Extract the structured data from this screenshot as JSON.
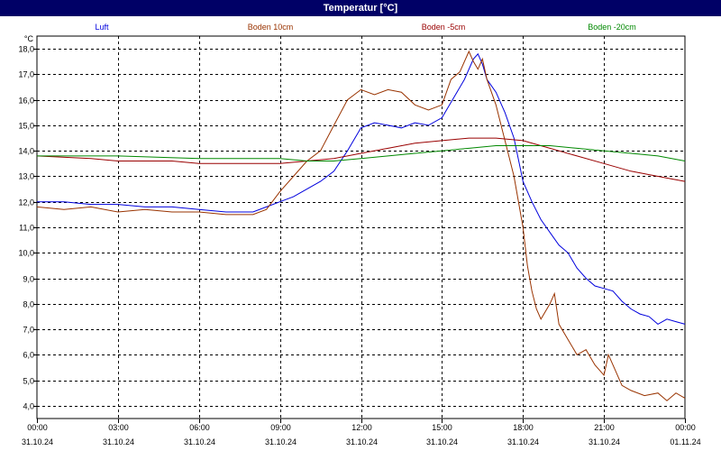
{
  "window": {
    "title": "Temperatur [°C]"
  },
  "chart_data": {
    "type": "line",
    "title": "Temperatur [°C]",
    "ylabel": "°C",
    "ylim": [
      3.5,
      18.5
    ],
    "yticks": [
      4.0,
      5.0,
      6.0,
      7.0,
      8.0,
      9.0,
      10.0,
      11.0,
      12.0,
      13.0,
      14.0,
      15.0,
      16.0,
      17.0,
      18.0
    ],
    "ytick_labels": [
      "4,0",
      "5,0",
      "6,0",
      "7,0",
      "8,0",
      "9,0",
      "10,0",
      "11,0",
      "12,0",
      "13,0",
      "14,0",
      "15,0",
      "16,0",
      "17,0",
      "18,0"
    ],
    "xlim": [
      "31.10.24 00:00",
      "01.11.24 00:00"
    ],
    "xticks": [
      {
        "time": "00:00",
        "date": "31.10.24"
      },
      {
        "time": "03:00",
        "date": "31.10.24"
      },
      {
        "time": "06:00",
        "date": "31.10.24"
      },
      {
        "time": "09:00",
        "date": "31.10.24"
      },
      {
        "time": "12:00",
        "date": "31.10.24"
      },
      {
        "time": "15:00",
        "date": "31.10.24"
      },
      {
        "time": "18:00",
        "date": "31.10.24"
      },
      {
        "time": "21:00",
        "date": "31.10.24"
      },
      {
        "time": "00:00",
        "date": "01.11.24"
      }
    ],
    "grid": true,
    "legend_position": "top",
    "series": [
      {
        "name": "Luft",
        "color": "#0000dd",
        "points": [
          [
            "00:00",
            12.0
          ],
          [
            "01:00",
            12.0
          ],
          [
            "02:00",
            11.9
          ],
          [
            "03:00",
            11.9
          ],
          [
            "04:00",
            11.8
          ],
          [
            "05:00",
            11.8
          ],
          [
            "06:00",
            11.7
          ],
          [
            "07:00",
            11.6
          ],
          [
            "08:00",
            11.6
          ],
          [
            "08:30",
            11.8
          ],
          [
            "09:00",
            12.0
          ],
          [
            "09:30",
            12.2
          ],
          [
            "10:00",
            12.5
          ],
          [
            "10:30",
            12.8
          ],
          [
            "11:00",
            13.2
          ],
          [
            "11:30",
            14.0
          ],
          [
            "12:00",
            14.9
          ],
          [
            "12:30",
            15.1
          ],
          [
            "13:00",
            15.0
          ],
          [
            "13:30",
            14.9
          ],
          [
            "14:00",
            15.1
          ],
          [
            "14:30",
            15.0
          ],
          [
            "15:00",
            15.3
          ],
          [
            "15:30",
            16.2
          ],
          [
            "15:50",
            16.8
          ],
          [
            "16:10",
            17.6
          ],
          [
            "16:20",
            17.8
          ],
          [
            "16:30",
            17.4
          ],
          [
            "16:40",
            16.8
          ],
          [
            "17:00",
            16.3
          ],
          [
            "17:20",
            15.5
          ],
          [
            "17:40",
            14.5
          ],
          [
            "18:00",
            12.8
          ],
          [
            "18:20",
            12.0
          ],
          [
            "18:40",
            11.3
          ],
          [
            "19:00",
            10.8
          ],
          [
            "19:20",
            10.3
          ],
          [
            "19:40",
            10.0
          ],
          [
            "20:00",
            9.4
          ],
          [
            "20:20",
            9.0
          ],
          [
            "20:40",
            8.7
          ],
          [
            "21:00",
            8.6
          ],
          [
            "21:20",
            8.5
          ],
          [
            "21:40",
            8.1
          ],
          [
            "22:00",
            7.8
          ],
          [
            "22:20",
            7.6
          ],
          [
            "22:40",
            7.5
          ],
          [
            "23:00",
            7.2
          ],
          [
            "23:20",
            7.4
          ],
          [
            "23:40",
            7.3
          ],
          [
            "24:00",
            7.2
          ]
        ]
      },
      {
        "name": "Boden 10cm",
        "color": "#993300",
        "points": [
          [
            "00:00",
            11.8
          ],
          [
            "01:00",
            11.7
          ],
          [
            "02:00",
            11.8
          ],
          [
            "03:00",
            11.6
          ],
          [
            "04:00",
            11.7
          ],
          [
            "05:00",
            11.6
          ],
          [
            "06:00",
            11.6
          ],
          [
            "07:00",
            11.5
          ],
          [
            "08:00",
            11.5
          ],
          [
            "08:30",
            11.7
          ],
          [
            "09:00",
            12.4
          ],
          [
            "09:30",
            13.0
          ],
          [
            "10:00",
            13.6
          ],
          [
            "10:30",
            14.0
          ],
          [
            "11:00",
            15.0
          ],
          [
            "11:30",
            16.0
          ],
          [
            "12:00",
            16.4
          ],
          [
            "12:30",
            16.2
          ],
          [
            "13:00",
            16.4
          ],
          [
            "13:30",
            16.3
          ],
          [
            "14:00",
            15.8
          ],
          [
            "14:30",
            15.6
          ],
          [
            "15:00",
            15.8
          ],
          [
            "15:20",
            16.8
          ],
          [
            "15:40",
            17.1
          ],
          [
            "16:00",
            17.9
          ],
          [
            "16:10",
            17.5
          ],
          [
            "16:20",
            17.2
          ],
          [
            "16:30",
            17.6
          ],
          [
            "16:40",
            16.8
          ],
          [
            "17:00",
            15.8
          ],
          [
            "17:20",
            14.4
          ],
          [
            "17:40",
            13.0
          ],
          [
            "18:00",
            11.0
          ],
          [
            "18:10",
            9.5
          ],
          [
            "18:20",
            8.5
          ],
          [
            "18:30",
            7.8
          ],
          [
            "18:40",
            7.4
          ],
          [
            "19:00",
            8.0
          ],
          [
            "19:10",
            8.4
          ],
          [
            "19:20",
            7.2
          ],
          [
            "19:40",
            6.6
          ],
          [
            "20:00",
            6.0
          ],
          [
            "20:20",
            6.2
          ],
          [
            "20:40",
            5.6
          ],
          [
            "21:00",
            5.2
          ],
          [
            "21:10",
            6.0
          ],
          [
            "21:20",
            5.6
          ],
          [
            "21:40",
            4.8
          ],
          [
            "22:00",
            4.6
          ],
          [
            "22:30",
            4.4
          ],
          [
            "23:00",
            4.5
          ],
          [
            "23:20",
            4.2
          ],
          [
            "23:40",
            4.5
          ],
          [
            "24:00",
            4.3
          ]
        ]
      },
      {
        "name": "Boden -5cm",
        "color": "#990000",
        "points": [
          [
            "00:00",
            13.8
          ],
          [
            "02:00",
            13.7
          ],
          [
            "03:00",
            13.6
          ],
          [
            "05:00",
            13.6
          ],
          [
            "06:00",
            13.5
          ],
          [
            "08:00",
            13.5
          ],
          [
            "09:00",
            13.5
          ],
          [
            "10:00",
            13.6
          ],
          [
            "11:00",
            13.7
          ],
          [
            "12:00",
            13.9
          ],
          [
            "13:00",
            14.1
          ],
          [
            "14:00",
            14.3
          ],
          [
            "15:00",
            14.4
          ],
          [
            "16:00",
            14.5
          ],
          [
            "17:00",
            14.5
          ],
          [
            "18:00",
            14.4
          ],
          [
            "19:00",
            14.1
          ],
          [
            "20:00",
            13.8
          ],
          [
            "21:00",
            13.5
          ],
          [
            "22:00",
            13.2
          ],
          [
            "23:00",
            13.0
          ],
          [
            "24:00",
            12.8
          ]
        ]
      },
      {
        "name": "Boden -20cm",
        "color": "#008800",
        "points": [
          [
            "00:00",
            13.8
          ],
          [
            "03:00",
            13.8
          ],
          [
            "06:00",
            13.7
          ],
          [
            "09:00",
            13.7
          ],
          [
            "10:00",
            13.6
          ],
          [
            "11:00",
            13.6
          ],
          [
            "12:00",
            13.7
          ],
          [
            "13:00",
            13.8
          ],
          [
            "14:00",
            13.9
          ],
          [
            "15:00",
            14.0
          ],
          [
            "16:00",
            14.1
          ],
          [
            "17:00",
            14.2
          ],
          [
            "18:00",
            14.2
          ],
          [
            "19:00",
            14.2
          ],
          [
            "20:00",
            14.1
          ],
          [
            "21:00",
            14.0
          ],
          [
            "22:00",
            13.9
          ],
          [
            "23:00",
            13.8
          ],
          [
            "24:00",
            13.6
          ]
        ]
      }
    ]
  }
}
